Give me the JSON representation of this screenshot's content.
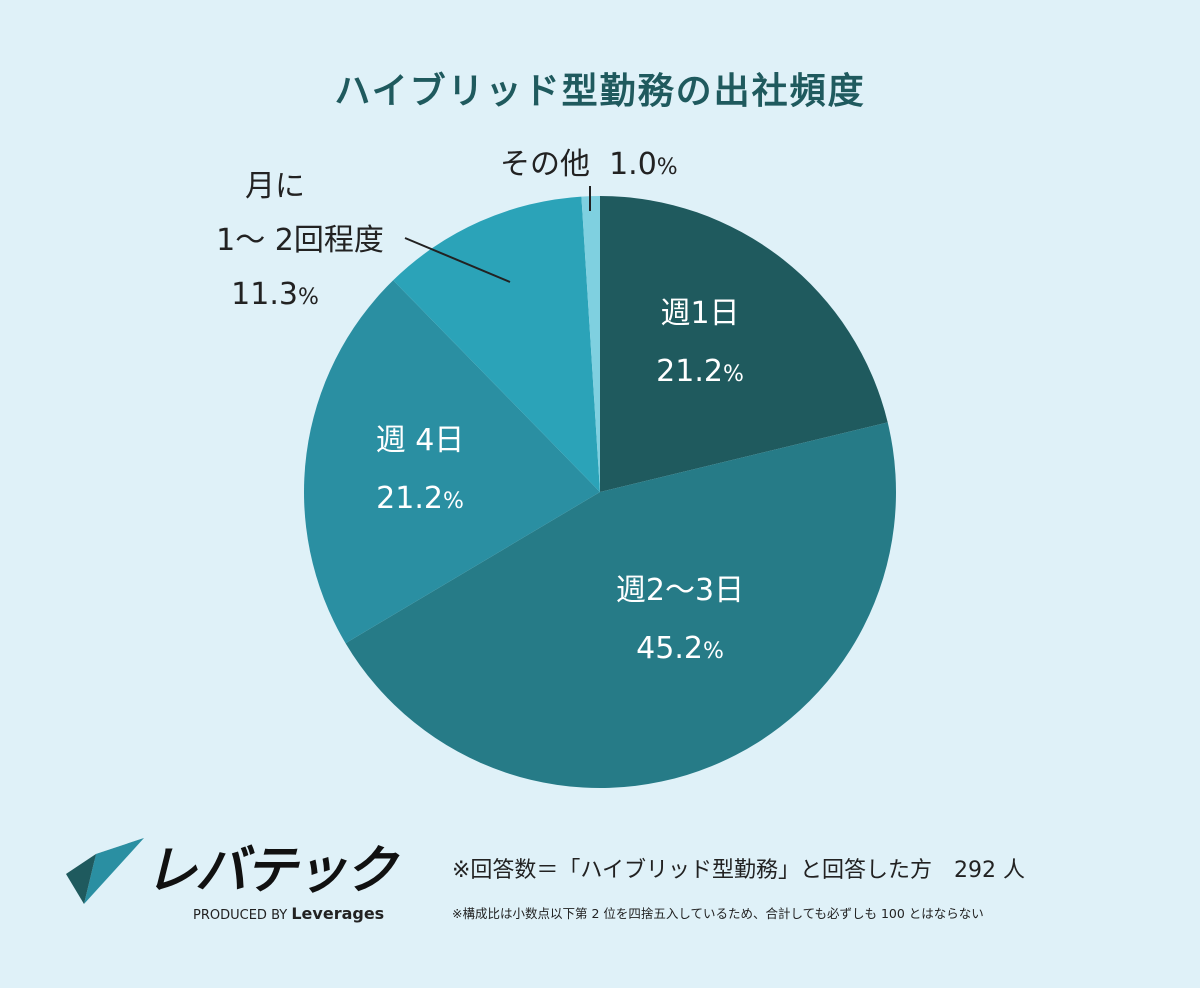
{
  "chart_data": {
    "type": "pie",
    "title": "ハイブリッド型勤務の出社頻度",
    "start": "top",
    "direction": "clockwise",
    "slices": [
      {
        "label": "週1日",
        "value": 21.2,
        "pct_text": "21.2",
        "color": "#1f5a5e"
      },
      {
        "label": "週2〜3日",
        "value": 45.2,
        "pct_text": "45.2",
        "color": "#267b87"
      },
      {
        "label": "週 4日",
        "value": 21.2,
        "pct_text": "21.2",
        "color": "#2a8fa2"
      },
      {
        "label_line1": "月に",
        "label_line2": "1〜 2回程度",
        "value": 11.3,
        "pct_text": "11.3",
        "color": "#2ba3b8"
      },
      {
        "label": "その他",
        "value": 1.0,
        "pct_text": "1.0",
        "color": "#7fd0e0"
      }
    ],
    "unit": "%"
  },
  "footer": {
    "logo_text": "レバテック",
    "logo_sub_prefix": "PRODUCED BY",
    "logo_sub_brand": "Leverages",
    "respondents": "※回答数＝「ハイブリッド型勤務」と回答した方　292 人",
    "rounding_note": "※構成比は小数点以下第 2 位を四捨五入しているため、合計しても必ずしも 100 とはならない"
  }
}
